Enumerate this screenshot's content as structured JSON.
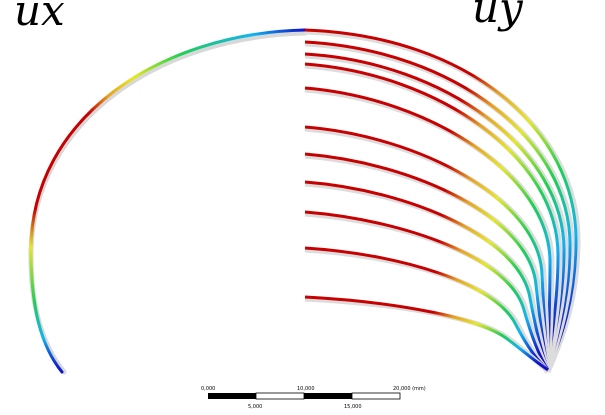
{
  "labels": {
    "left": "ux",
    "right": "uy"
  },
  "scale_bar": {
    "top_ticks": [
      "0,000",
      "10,000",
      "20,000 (mm)"
    ],
    "bottom_ticks": [
      "5,000",
      "15,000"
    ]
  },
  "colormap": [
    "#1010c8",
    "#10b4f0",
    "#20d050",
    "#e8e820",
    "#e8a020",
    "#c80000"
  ]
}
